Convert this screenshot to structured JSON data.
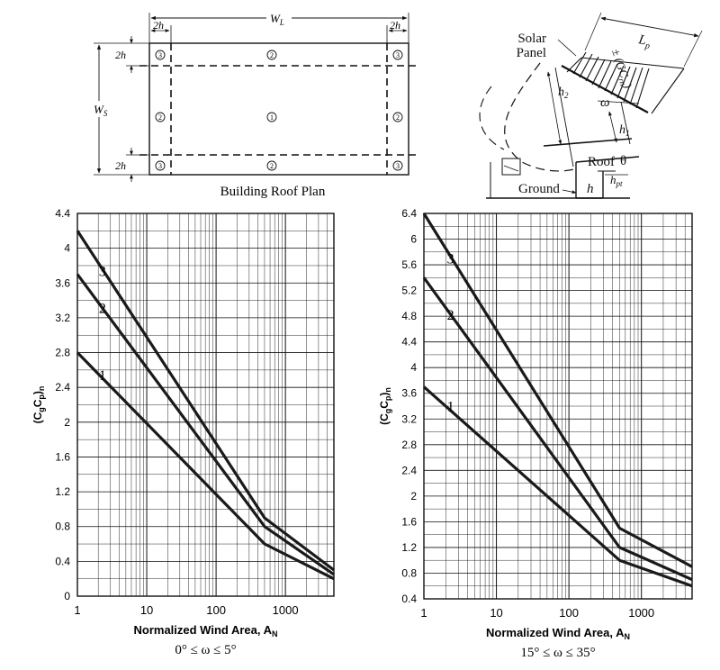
{
  "plan": {
    "caption": "Building Roof Plan",
    "dims": {
      "wl": "W",
      "wl_sub": "L",
      "ws": "W",
      "ws_sub": "S",
      "edge": "2h"
    },
    "zones": [
      {
        "label": "3",
        "row": "top",
        "col": "left"
      },
      {
        "label": "2",
        "row": "top",
        "col": "mid"
      },
      {
        "label": "3",
        "row": "top",
        "col": "right"
      },
      {
        "label": "2",
        "row": "mid",
        "col": "left"
      },
      {
        "label": "1",
        "row": "mid",
        "col": "mid"
      },
      {
        "label": "2",
        "row": "mid",
        "col": "right"
      },
      {
        "label": "3",
        "row": "bot",
        "col": "left"
      },
      {
        "label": "2",
        "row": "bot",
        "col": "mid"
      },
      {
        "label": "3",
        "row": "bot",
        "col": "right"
      }
    ]
  },
  "section": {
    "solar_panel": "Solar\nPanel",
    "lp": "L",
    "lp_sub": "p",
    "gcrn": "± (GC",
    "gcrn_sub": "rn",
    "gcrn_close": ")",
    "h2": "h",
    "h2_sub": "2",
    "h1": "h",
    "h1_sub": "1",
    "omega": "ω",
    "roof": "Roof",
    "theta": "θ",
    "ground": "Ground",
    "h": "h",
    "hpt": "h",
    "hpt_sub": "pt"
  },
  "chart_data": [
    {
      "type": "line",
      "xscale": "log",
      "xlim": [
        1,
        5000
      ],
      "ylim": [
        0,
        4.4
      ],
      "yticks": [
        0,
        0.4,
        0.8,
        1.2,
        1.6,
        2,
        2.4,
        2.8,
        3.2,
        3.6,
        4,
        4.4
      ],
      "ytick_labels": [
        "0",
        "0.4",
        "0.8",
        "1.2",
        "1.6",
        "2",
        "2.4",
        "2.8",
        "3.2",
        "3.6",
        "4",
        "4.4"
      ],
      "xticks": [
        1,
        10,
        100,
        1000
      ],
      "xtick_labels": [
        "1",
        "10",
        "100",
        "1000"
      ],
      "ylabel": "(CgCp)n",
      "xlabel": "Normalized Wind Area, AN",
      "subtitle": "0° ≤ ω ≤ 5°",
      "grid": true,
      "series": [
        {
          "name": "1",
          "x": [
            1,
            500,
            5000
          ],
          "y": [
            2.8,
            0.6,
            0.2
          ]
        },
        {
          "name": "2",
          "x": [
            1,
            500,
            5000
          ],
          "y": [
            3.7,
            0.8,
            0.25
          ]
        },
        {
          "name": "3",
          "x": [
            1,
            500,
            5000
          ],
          "y": [
            4.2,
            0.9,
            0.3
          ]
        }
      ]
    },
    {
      "type": "line",
      "xscale": "log",
      "xlim": [
        1,
        5000
      ],
      "ylim": [
        0.4,
        6.4
      ],
      "yticks": [
        0.4,
        0.8,
        1.2,
        1.6,
        2,
        2.4,
        2.8,
        3.2,
        3.6,
        4,
        4.4,
        4.8,
        5.2,
        5.6,
        6,
        6.4
      ],
      "ytick_labels": [
        "0.4",
        "0.8",
        "1.2",
        "1.6",
        "2",
        "2.4",
        "2.8",
        "3.2",
        "3.6",
        "4",
        "4.4",
        "4.8",
        "5.2",
        "5.6",
        "6",
        "6.4"
      ],
      "xticks": [
        1,
        10,
        100,
        1000
      ],
      "xtick_labels": [
        "1",
        "10",
        "100",
        "1000"
      ],
      "ylabel": "(CgCp)n",
      "xlabel": "Normalized Wind Area, AN",
      "subtitle": "15° ≤ ω ≤ 35°",
      "grid": true,
      "series": [
        {
          "name": "1",
          "x": [
            1,
            500,
            5000
          ],
          "y": [
            3.7,
            1.0,
            0.6
          ]
        },
        {
          "name": "2",
          "x": [
            1,
            500,
            5000
          ],
          "y": [
            5.4,
            1.2,
            0.7
          ]
        },
        {
          "name": "3",
          "x": [
            1,
            500,
            5000
          ],
          "y": [
            6.4,
            1.5,
            0.9
          ]
        }
      ]
    }
  ]
}
